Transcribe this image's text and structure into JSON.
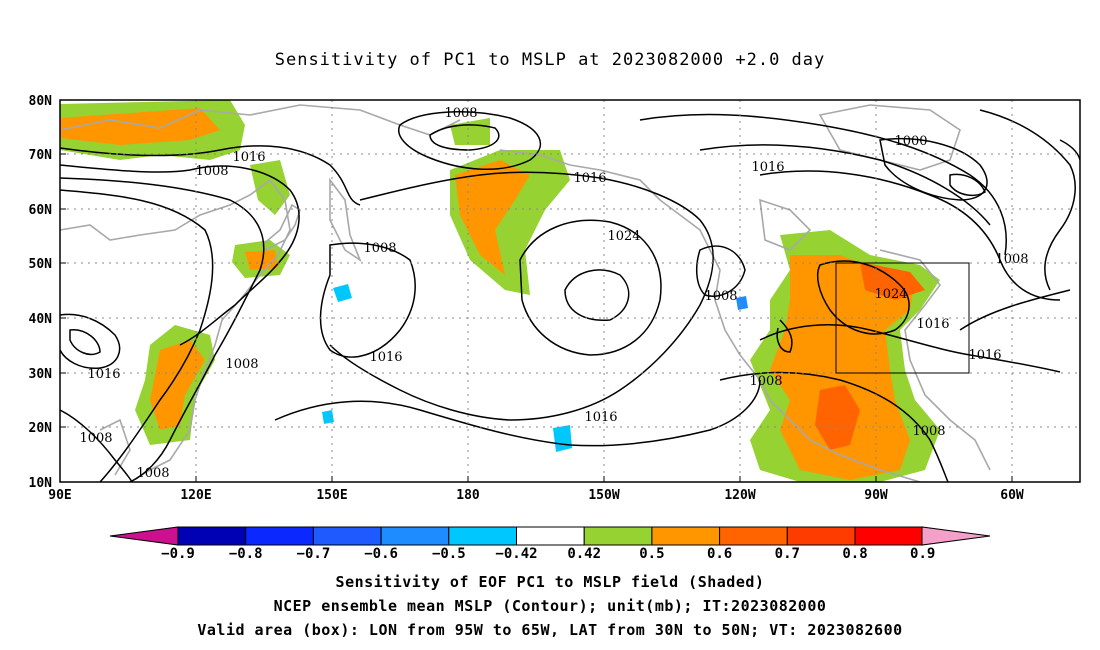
{
  "title": "Sensitivity of PC1 to MSLP at 2023082000 +2.0 day",
  "map": {
    "lat_labels": [
      "80N",
      "70N",
      "60N",
      "50N",
      "40N",
      "30N",
      "20N",
      "10N"
    ],
    "lon_labels": [
      "90E",
      "120E",
      "150E",
      "180",
      "150W",
      "120W",
      "90W",
      "60W"
    ],
    "contour_labels": [
      "1008",
      "1016",
      "1008",
      "1008",
      "1016",
      "1024",
      "1016",
      "1008",
      "1016",
      "1000",
      "1016",
      "1008",
      "1024",
      "1016",
      "1016",
      "1008",
      "1008",
      "1016",
      "1008",
      "1008"
    ],
    "valid_box": {
      "lon": [
        "95W",
        "65W"
      ],
      "lat": [
        "30N",
        "50N"
      ]
    }
  },
  "colorbar": {
    "labels": [
      "-0.9",
      "-0.8",
      "-0.7",
      "-0.6",
      "-0.5",
      "-0.42",
      "0.42",
      "0.5",
      "0.6",
      "0.7",
      "0.8",
      "0.9"
    ],
    "colors": [
      "#0000b4",
      "#0a28ff",
      "#1e5aff",
      "#1e8cff",
      "#00c8ff",
      "#ffffff",
      "#96d232",
      "#ff9600",
      "#ff6400",
      "#ff3c00",
      "#ff0000"
    ],
    "low_end_color": "#cc1090",
    "high_end_color": "#f5a0c8"
  },
  "captions": [
    "Sensitivity of EOF PC1 to MSLP field (Shaded)",
    "NCEP ensemble mean MSLP (Contour); unit(mb); IT:2023082000",
    "Valid area (box): LON from 95W to 65W, LAT from 30N to 50N; VT: 2023082600"
  ]
}
